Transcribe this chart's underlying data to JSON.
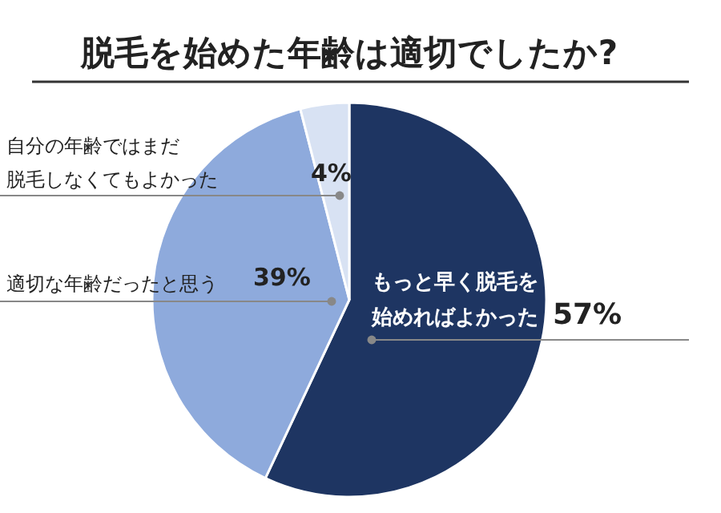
{
  "chart_data": {
    "type": "pie",
    "title": "脱毛を始めた年齢は適切でしたか?",
    "categories": [
      "もっと早く脱毛を始めればよかった",
      "適切な年齢だったと思う",
      "自分の年齢ではまだ脱毛しなくてもよかった"
    ],
    "values": [
      57,
      39,
      4
    ],
    "colors": [
      "#1e3562",
      "#8eaadc",
      "#d8e2f3"
    ],
    "value_labels": [
      "57%",
      "39%",
      "4%"
    ]
  }
}
